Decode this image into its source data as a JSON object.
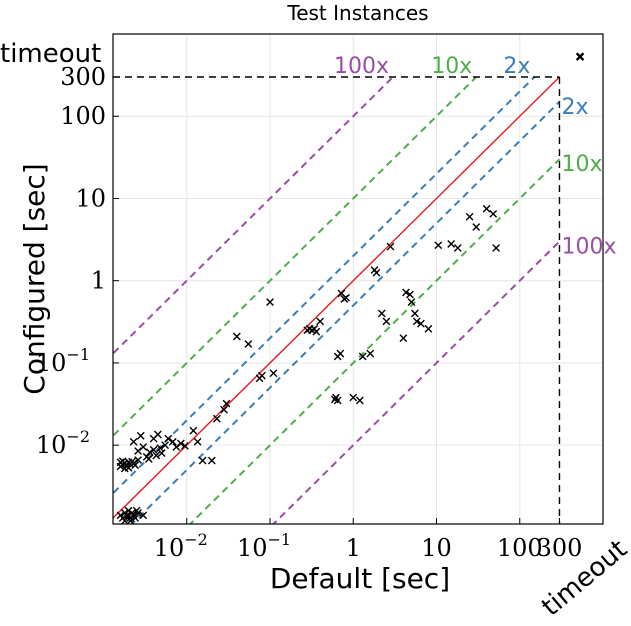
{
  "chart_data": {
    "type": "scatter",
    "title": "Test Instances",
    "xlabel": "Default [sec]",
    "ylabel": "Configured [sec]",
    "xscale": "log",
    "yscale": "log",
    "xlim": [
      0.0013,
      1000
    ],
    "ylim": [
      0.0011,
      1000
    ],
    "grid": true,
    "timeout_value": 300,
    "timeout_label": "timeout",
    "x_ticks": [
      {
        "value": 0.01,
        "base": "10",
        "exp": "−2"
      },
      {
        "value": 0.1,
        "base": "10",
        "exp": "−1"
      },
      {
        "value": 1,
        "base": "1",
        "exp": ""
      },
      {
        "value": 10,
        "base": "10",
        "exp": ""
      },
      {
        "value": 100,
        "base": "100",
        "exp": ""
      },
      {
        "value": 300,
        "base": "300",
        "exp": ""
      }
    ],
    "y_ticks": [
      {
        "value": 0.01,
        "base": "10",
        "exp": "−2"
      },
      {
        "value": 0.1,
        "base": "10",
        "exp": "−1"
      },
      {
        "value": 1,
        "base": "1",
        "exp": ""
      },
      {
        "value": 10,
        "base": "10",
        "exp": ""
      },
      {
        "value": 100,
        "base": "100",
        "exp": ""
      },
      {
        "value": 300,
        "base": "300",
        "exp": ""
      }
    ],
    "ratio_lines": [
      {
        "factor": 100,
        "label": "100x",
        "color": "#984ea3"
      },
      {
        "factor": 10,
        "label": "10x",
        "color": "#4daf4a"
      },
      {
        "factor": 2,
        "label": "2x",
        "color": "#377eb8"
      }
    ],
    "diagonal_color": "#e41a1c",
    "marker": "x",
    "points": [
      [
        0.0016,
        0.0055
      ],
      [
        0.0017,
        0.0058
      ],
      [
        0.0018,
        0.006
      ],
      [
        0.0019,
        0.0056
      ],
      [
        0.002,
        0.0062
      ],
      [
        0.0021,
        0.0059
      ],
      [
        0.0022,
        0.0063
      ],
      [
        0.0016,
        0.0062
      ],
      [
        0.0018,
        0.0052
      ],
      [
        0.0024,
        0.0057
      ],
      [
        0.0026,
        0.0066
      ],
      [
        0.0017,
        0.0064
      ],
      [
        0.002,
        0.0053
      ],
      [
        0.0023,
        0.006
      ],
      [
        0.0016,
        0.0014
      ],
      [
        0.0017,
        0.0013
      ],
      [
        0.0018,
        0.0015
      ],
      [
        0.0019,
        0.0014
      ],
      [
        0.002,
        0.0016
      ],
      [
        0.0021,
        0.0013
      ],
      [
        0.0022,
        0.0015
      ],
      [
        0.0023,
        0.0014
      ],
      [
        0.0024,
        0.0013
      ],
      [
        0.0026,
        0.0015
      ],
      [
        0.0018,
        0.0012
      ],
      [
        0.0021,
        0.0012
      ],
      [
        0.0025,
        0.0016
      ],
      [
        0.002,
        0.0014
      ],
      [
        0.003,
        0.0014
      ],
      [
        0.0023,
        0.011
      ],
      [
        0.0026,
        0.0085
      ],
      [
        0.003,
        0.0095
      ],
      [
        0.0033,
        0.0072
      ],
      [
        0.0036,
        0.0082
      ],
      [
        0.004,
        0.0088
      ],
      [
        0.0043,
        0.0075
      ],
      [
        0.0048,
        0.0092
      ],
      [
        0.0055,
        0.01
      ],
      [
        0.006,
        0.012
      ],
      [
        0.0068,
        0.011
      ],
      [
        0.0075,
        0.0095
      ],
      [
        0.0085,
        0.0105
      ],
      [
        0.0095,
        0.0098
      ],
      [
        0.0028,
        0.013
      ],
      [
        0.004,
        0.012
      ],
      [
        0.0045,
        0.0135
      ],
      [
        0.005,
        0.008
      ],
      [
        0.0035,
        0.0068
      ],
      [
        0.012,
        0.015
      ],
      [
        0.0135,
        0.011
      ],
      [
        0.0155,
        0.0065
      ],
      [
        0.02,
        0.0065
      ],
      [
        0.023,
        0.021
      ],
      [
        0.028,
        0.027
      ],
      [
        0.03,
        0.032
      ],
      [
        0.04,
        0.21
      ],
      [
        0.055,
        0.17
      ],
      [
        0.075,
        0.065
      ],
      [
        0.08,
        0.07
      ],
      [
        0.1,
        0.55
      ],
      [
        0.11,
        0.075
      ],
      [
        0.28,
        0.25
      ],
      [
        0.3,
        0.26
      ],
      [
        0.32,
        0.25
      ],
      [
        0.34,
        0.26
      ],
      [
        0.36,
        0.24
      ],
      [
        0.4,
        0.32
      ],
      [
        0.6,
        0.036
      ],
      [
        0.62,
        0.038
      ],
      [
        0.65,
        0.035
      ],
      [
        0.65,
        0.12
      ],
      [
        0.7,
        0.13
      ],
      [
        0.72,
        0.7
      ],
      [
        0.78,
        0.6
      ],
      [
        0.82,
        0.62
      ],
      [
        1.0,
        0.038
      ],
      [
        1.2,
        0.035
      ],
      [
        1.3,
        0.12
      ],
      [
        1.6,
        0.13
      ],
      [
        1.8,
        1.35
      ],
      [
        1.9,
        1.25
      ],
      [
        2.2,
        0.4
      ],
      [
        2.5,
        0.32
      ],
      [
        2.8,
        2.6
      ],
      [
        4.0,
        0.2
      ],
      [
        4.3,
        0.72
      ],
      [
        4.8,
        0.68
      ],
      [
        5.0,
        0.55
      ],
      [
        5.5,
        0.4
      ],
      [
        5.8,
        0.32
      ],
      [
        6.5,
        0.3
      ],
      [
        8.0,
        0.26
      ],
      [
        10.5,
        2.7
      ],
      [
        15.0,
        2.8
      ],
      [
        18.0,
        2.5
      ],
      [
        25.0,
        6.0
      ],
      [
        30.0,
        4.5
      ],
      [
        40.0,
        7.5
      ],
      [
        48.0,
        6.5
      ],
      [
        52.0,
        2.5
      ]
    ],
    "timeout_points": [
      [
        530,
        530
      ]
    ]
  }
}
